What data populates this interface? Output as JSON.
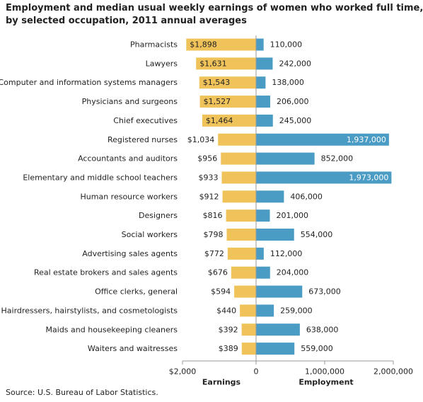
{
  "chart_data": {
    "type": "bar",
    "title_lines": [
      "Employment and median usual weekly earnings of women who worked full time,",
      "by selected occupation, 2011 annual averages"
    ],
    "categories": [
      "Pharmacists",
      "Lawyers",
      "Computer and information systems managers",
      "Physicians and surgeons",
      "Chief executives",
      "Registered nurses",
      "Accountants and auditors",
      "Elementary and middle school teachers",
      "Human resource workers",
      "Designers",
      "Social workers",
      "Advertising sales agents",
      "Real estate brokers and sales agents",
      "Office clerks, general",
      "Hairdressers, hairstylists, and cosmetologists",
      "Maids and housekeeping cleaners",
      "Waiters and waitresses"
    ],
    "series": [
      {
        "name": "Earnings",
        "color": "#f0c35a",
        "values": [
          1898,
          1631,
          1543,
          1527,
          1464,
          1034,
          956,
          933,
          912,
          816,
          798,
          772,
          676,
          594,
          440,
          392,
          389
        ],
        "labels": [
          "$1,898",
          "$1,631",
          "$1,543",
          "$1,527",
          "$1,464",
          "$1,034",
          "$956",
          "$933",
          "$912",
          "$816",
          "$798",
          "$772",
          "$676",
          "$594",
          "$440",
          "$392",
          "$389"
        ],
        "axis_max": 2000,
        "axis_ticks": [
          "$2,000",
          "0"
        ]
      },
      {
        "name": "Employment",
        "color": "#4a9cc4",
        "values": [
          110000,
          242000,
          138000,
          206000,
          245000,
          1937000,
          852000,
          1973000,
          406000,
          201000,
          554000,
          112000,
          204000,
          673000,
          259000,
          638000,
          559000
        ],
        "labels": [
          "110,000",
          "242,000",
          "138,000",
          "206,000",
          "245,000",
          "1,937,000",
          "852,000",
          "1,973,000",
          "406,000",
          "201,000",
          "554,000",
          "112,000",
          "204,000",
          "673,000",
          "259,000",
          "638,000",
          "559,000"
        ],
        "axis_max": 2000000,
        "axis_ticks": [
          "1,000,000",
          "2,000,000"
        ]
      }
    ],
    "source": "Source: U.S. Bureau of Labor Statistics."
  }
}
